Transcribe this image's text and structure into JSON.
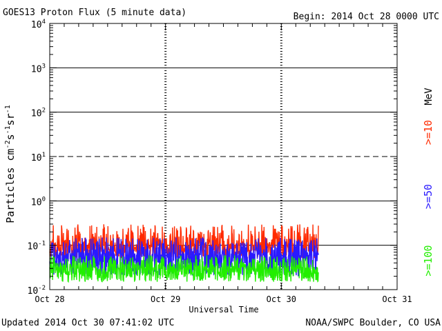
{
  "header": {
    "title": "GOES13 Proton Flux (5 minute data)",
    "begin": "Begin: 2014 Oct 28 0000 UTC"
  },
  "footer": {
    "updated": "Updated 2014 Oct 30 07:41:02 UTC",
    "source": "NOAA/SWPC Boulder, CO USA"
  },
  "legend": {
    "unit": "MeV",
    "items": [
      {
        "label": ">=10",
        "color": "#ff2a00"
      },
      {
        "label": ">=50",
        "color": "#2a1aff"
      },
      {
        "label": ">=100",
        "color": "#22ee00"
      }
    ]
  },
  "chart_data": {
    "type": "line",
    "title": "GOES13 Proton Flux (5 minute data)",
    "xlabel": "Universal Time",
    "ylabel": "Particles cm-2s-1sr-1",
    "yscale": "log",
    "ylim": [
      0.01,
      10000
    ],
    "y_ticks": [
      {
        "base": "10",
        "exp": "-2"
      },
      {
        "base": "10",
        "exp": "-1"
      },
      {
        "base": "10",
        "exp": "0"
      },
      {
        "base": "10",
        "exp": "1"
      },
      {
        "base": "10",
        "exp": "2"
      },
      {
        "base": "10",
        "exp": "3"
      },
      {
        "base": "10",
        "exp": "4"
      }
    ],
    "x_ticks": [
      "Oct 28",
      "Oct 29",
      "Oct 30",
      "Oct 31"
    ],
    "xlim_days": [
      0,
      3
    ],
    "data_end_day": 2.32,
    "grid": "solid horizontal lines at 10^-1, 10^0, 10^2, 10^3; dashed at 10^1; dotted vertical day markers",
    "series": [
      {
        "name": ">=10 MeV",
        "color": "#ff2a00",
        "typical": 0.1,
        "range": [
          0.05,
          0.3
        ]
      },
      {
        "name": ">=50 MeV",
        "color": "#2a1aff",
        "typical": 0.06,
        "range": [
          0.02,
          0.15
        ]
      },
      {
        "name": ">=100 MeV",
        "color": "#22ee00",
        "typical": 0.03,
        "range": [
          0.015,
          0.06
        ]
      }
    ]
  }
}
